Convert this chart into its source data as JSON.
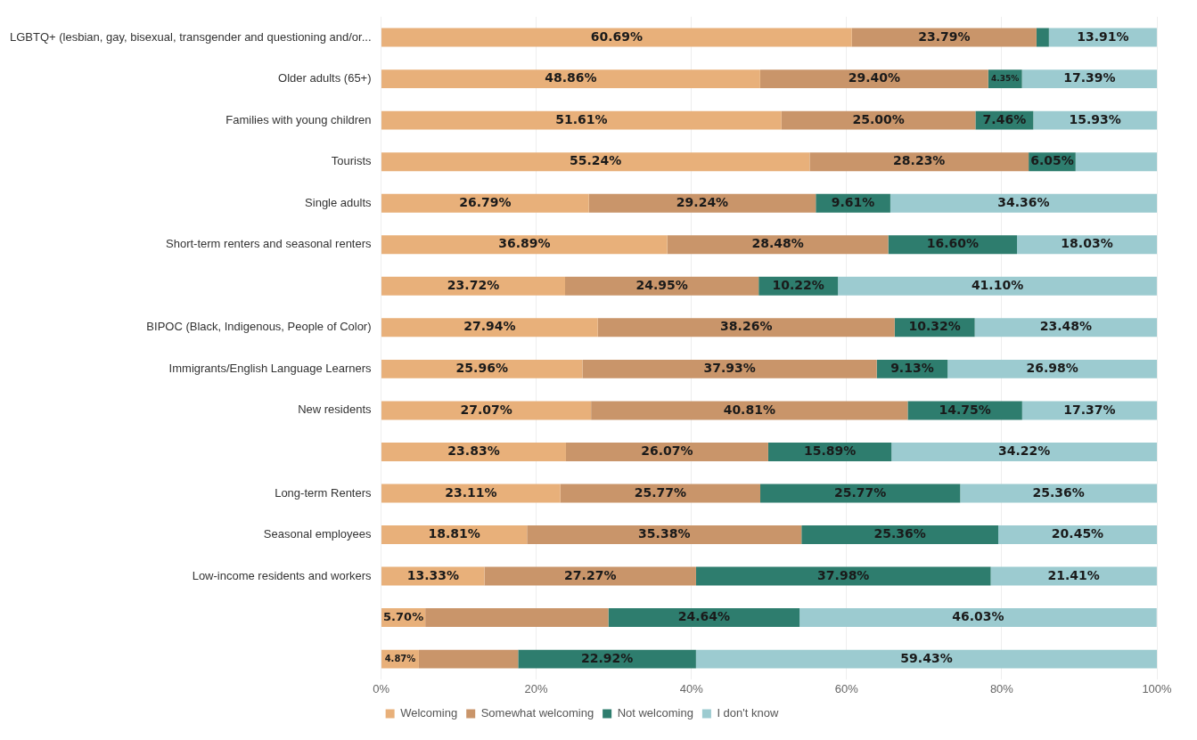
{
  "chart_data": {
    "type": "bar",
    "orientation": "horizontal",
    "stacked": true,
    "categories": [
      "LGBTQ+ (lesbian, gay, bisexual, transgender and questioning and/or...",
      "Older adults (65+)",
      "Families with young children",
      "Tourists",
      "Single adults",
      "Short-term renters and seasonal renters",
      null,
      "BIPOC (Black, Indigenous, People of Color)",
      "Immigrants/English Language Learners",
      "New residents",
      null,
      "Long-term Renters",
      "Seasonal employees",
      "Low-income residents and workers",
      null,
      null
    ],
    "series": [
      {
        "name": "Welcoming",
        "color": "#e8b07a",
        "values": [
          60.69,
          48.86,
          51.61,
          55.24,
          26.79,
          36.89,
          23.72,
          27.94,
          25.96,
          27.07,
          23.83,
          23.11,
          18.81,
          13.33,
          5.7,
          4.87
        ],
        "value_labels": [
          "60.69%",
          "48.86%",
          "51.61%",
          "55.24%",
          "26.79%",
          "36.89%",
          "23.72%",
          "27.94%",
          "25.96%",
          "27.07%",
          "23.83%",
          "23.11%",
          "18.81%",
          "13.33%",
          "5.70%",
          "4.87%"
        ]
      },
      {
        "name": "Somewhat welcoming",
        "color": "#c9956a",
        "values": [
          23.79,
          29.4,
          25.0,
          28.23,
          29.24,
          28.48,
          24.95,
          38.26,
          37.93,
          40.81,
          26.07,
          25.77,
          35.38,
          27.27,
          23.6,
          12.8
        ],
        "value_labels": [
          "23.79%",
          "29.40%",
          "25.00%",
          "28.23%",
          "29.24%",
          "28.48%",
          "24.95%",
          "38.26%",
          "37.93%",
          "40.81%",
          "26.07%",
          "25.77%",
          "35.38%",
          "27.27%",
          null,
          null
        ]
      },
      {
        "name": "Not welcoming",
        "color": "#2e7d6e",
        "values": [
          1.6,
          4.35,
          7.46,
          6.05,
          9.61,
          16.6,
          10.22,
          10.32,
          9.13,
          14.75,
          15.89,
          25.77,
          25.36,
          37.98,
          24.64,
          22.92
        ],
        "value_labels": [
          null,
          "4.35%",
          "7.46%",
          "6.05%",
          "9.61%",
          "16.60%",
          "10.22%",
          "10.32%",
          "9.13%",
          "14.75%",
          "15.89%",
          "25.77%",
          "25.36%",
          "37.98%",
          "24.64%",
          "22.92%"
        ]
      },
      {
        "name": "I don't know",
        "color": "#9ccbd0",
        "values": [
          13.91,
          17.39,
          15.93,
          10.5,
          34.36,
          18.03,
          41.1,
          23.48,
          26.98,
          17.37,
          34.22,
          25.36,
          20.45,
          21.41,
          46.03,
          59.43
        ],
        "value_labels": [
          "13.91%",
          "17.39%",
          "15.93%",
          null,
          "34.36%",
          "18.03%",
          "41.10%",
          "23.48%",
          "26.98%",
          "17.37%",
          "34.22%",
          "25.36%",
          "20.45%",
          "21.41%",
          "46.03%",
          "59.43%"
        ]
      }
    ],
    "xlim": [
      0,
      100
    ],
    "xticks": [
      {
        "value": 0,
        "label": "0%"
      },
      {
        "value": 20,
        "label": "20%"
      },
      {
        "value": 40,
        "label": "40%"
      },
      {
        "value": 60,
        "label": "60%"
      },
      {
        "value": 80,
        "label": "80%"
      },
      {
        "value": 100,
        "label": "100%"
      }
    ],
    "grid": "x",
    "legend": "bottom"
  }
}
